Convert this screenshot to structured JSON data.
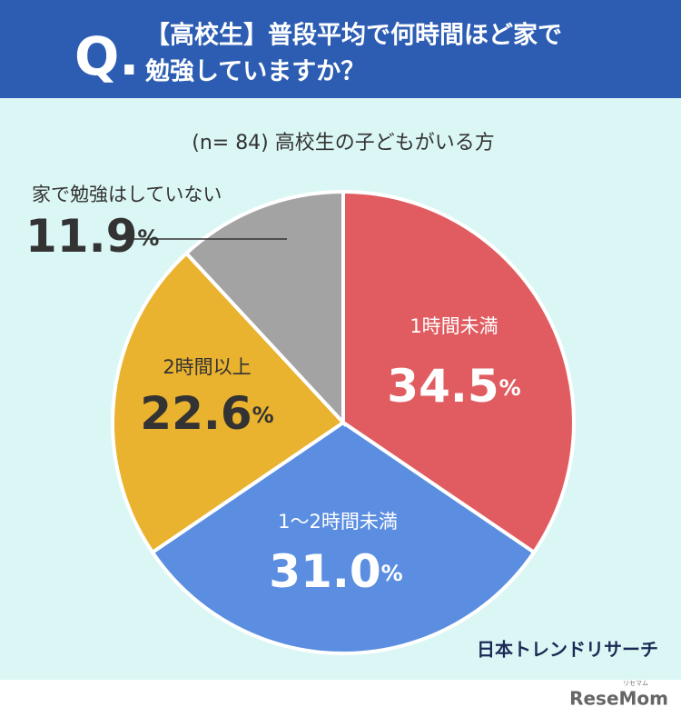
{
  "header": {
    "mark": "Q.",
    "lines": [
      "【高校生】普段平均で何時間ほど家で",
      "勉強していますか？"
    ]
  },
  "chart_data": {
    "type": "pie",
    "subtitle": "(n= 84) 高校生の子どもがいる方",
    "categories": [
      "1時間未満",
      "1～2時間未満",
      "2時間以上",
      "家で勉強はしていない"
    ],
    "values": [
      34.5,
      31.0,
      22.6,
      11.9
    ],
    "value_labels": [
      "34.5",
      "31.0",
      "22.6",
      "11.9"
    ],
    "unit": "%",
    "colors": [
      "#e05c61",
      "#5b8ee0",
      "#e9b22f",
      "#a3a3a3"
    ]
  },
  "source": "日本トレンドリサーチ",
  "logo": {
    "kana": "リセマム",
    "name": "ReseMom"
  }
}
